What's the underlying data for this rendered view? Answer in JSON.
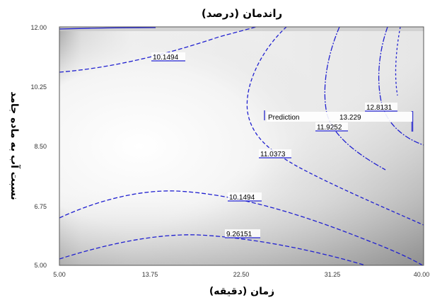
{
  "chart_data": {
    "type": "contour",
    "title": "راندمان (درصد)",
    "xlabel": "زمان (دقیقه)",
    "ylabel": "نسبت آب به ماده جامد",
    "x_ticks": [
      "5.00",
      "13.75",
      "22.50",
      "31.25",
      "40.00"
    ],
    "y_ticks": [
      "5.00",
      "6.75",
      "8.50",
      "10.25",
      "12.00"
    ],
    "xlim": [
      5,
      40
    ],
    "ylim": [
      5,
      12
    ],
    "grid": false,
    "contour_labels": [
      "10.1494",
      "11.0373",
      "10.1494",
      "9.26151",
      "11.9252",
      "12.8131",
      "13.229"
    ],
    "prediction_label": "Prediction",
    "colors": {
      "contour": "#2020d0",
      "shade_dark": "#8c8c8c",
      "shade_light": "#ffffff"
    }
  }
}
